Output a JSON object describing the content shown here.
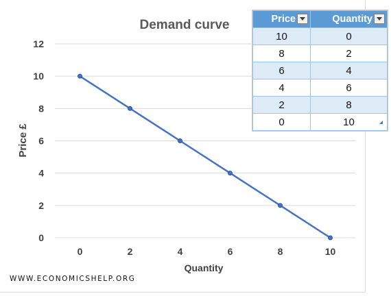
{
  "chart_data": {
    "type": "line",
    "title": "Demand curve",
    "xlabel": "Quantity",
    "ylabel": "Price £",
    "x": [
      0,
      2,
      4,
      6,
      8,
      10
    ],
    "series": [
      {
        "values": [
          10,
          8,
          6,
          4,
          2,
          0
        ],
        "color": "#4472c4"
      }
    ],
    "xticks": [
      "0",
      "2",
      "4",
      "6",
      "8",
      "10"
    ],
    "yticks": [
      "0",
      "2",
      "4",
      "6",
      "8",
      "10",
      "12"
    ],
    "xlim": [
      -1,
      11
    ],
    "ylim": [
      0,
      12
    ],
    "grid": "horizontal"
  },
  "table": {
    "headers": [
      "Price",
      "Quantity"
    ],
    "rows": [
      [
        "10",
        "0"
      ],
      [
        "8",
        "2"
      ],
      [
        "6",
        "4"
      ],
      [
        "4",
        "6"
      ],
      [
        "2",
        "8"
      ],
      [
        "0",
        "10"
      ]
    ]
  },
  "watermark": "WWW.ECONOMICSHELP.ORG",
  "colors": {
    "line": "#4472c4",
    "table_header": "#5b9bd5",
    "table_band": "#ddebf7",
    "gridline": "#d9d9d9"
  }
}
